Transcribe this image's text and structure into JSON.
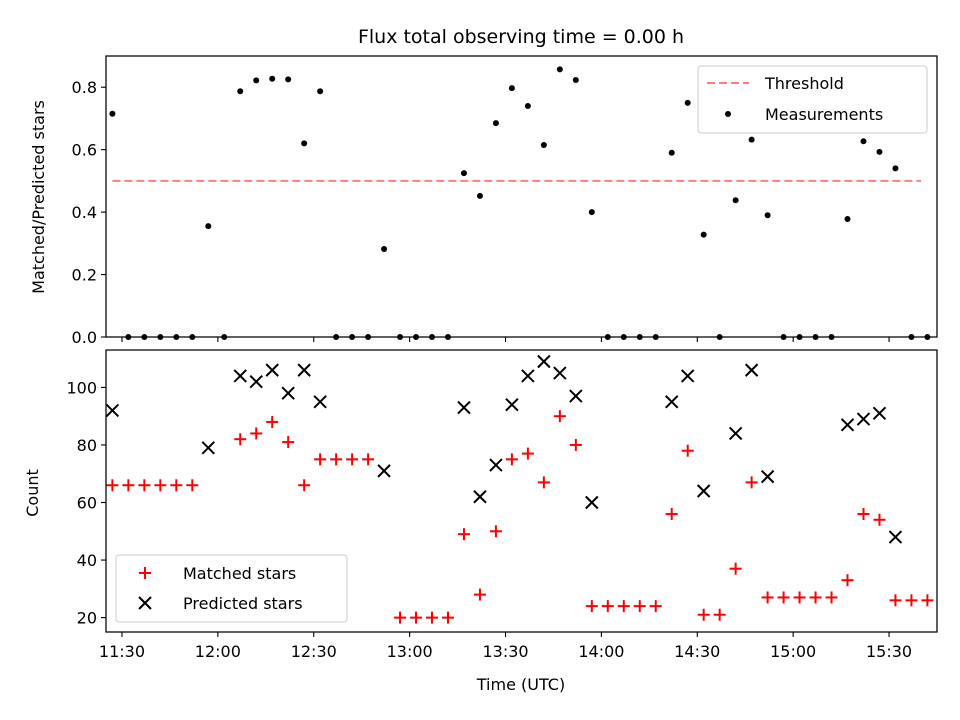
{
  "chart_data": {
    "title": "Flux total observing time = 0.00 h",
    "xlabel": "Time (UTC)",
    "x_ticks": [
      "11:30",
      "12:00",
      "12:30",
      "13:00",
      "13:30",
      "14:00",
      "14:30",
      "15:00",
      "15:30"
    ],
    "panels": [
      {
        "type": "scatter",
        "ylabel": "Matched/Predicted stars",
        "ylim": [
          0,
          0.9
        ],
        "y_ticks": [
          "0.0",
          "0.2",
          "0.4",
          "0.6",
          "0.8"
        ],
        "legend_position": "upper right",
        "threshold": {
          "name": "Threshold",
          "value": 0.5,
          "x_start": "11:27",
          "x_end": "15:40",
          "color": "#ff7f7f",
          "style": "dashed"
        },
        "series": [
          {
            "name": "Measurements",
            "color": "#000000",
            "marker": "dot",
            "points": [
              [
                "11:27",
                0.715
              ],
              [
                "11:32",
                0.0
              ],
              [
                "11:37",
                0.0
              ],
              [
                "11:42",
                0.0
              ],
              [
                "11:47",
                0.0
              ],
              [
                "11:52",
                0.0
              ],
              [
                "11:57",
                0.355
              ],
              [
                "12:02",
                0.0
              ],
              [
                "12:07",
                0.787
              ],
              [
                "12:12",
                0.822
              ],
              [
                "12:17",
                0.827
              ],
              [
                "12:22",
                0.825
              ],
              [
                "12:27",
                0.62
              ],
              [
                "12:32",
                0.787
              ],
              [
                "12:37",
                0.0
              ],
              [
                "12:42",
                0.0
              ],
              [
                "12:47",
                0.0
              ],
              [
                "12:52",
                0.282
              ],
              [
                "12:57",
                0.0
              ],
              [
                "13:02",
                0.0
              ],
              [
                "13:07",
                0.0
              ],
              [
                "13:12",
                0.0
              ],
              [
                "13:17",
                0.525
              ],
              [
                "13:22",
                0.452
              ],
              [
                "13:27",
                0.685
              ],
              [
                "13:32",
                0.797
              ],
              [
                "13:37",
                0.74
              ],
              [
                "13:42",
                0.615
              ],
              [
                "13:47",
                0.857
              ],
              [
                "13:52",
                0.823
              ],
              [
                "13:57",
                0.4
              ],
              [
                "14:02",
                0.0
              ],
              [
                "14:07",
                0.0
              ],
              [
                "14:12",
                0.0
              ],
              [
                "14:17",
                0.0
              ],
              [
                "14:22",
                0.59
              ],
              [
                "14:27",
                0.75
              ],
              [
                "14:32",
                0.328
              ],
              [
                "14:37",
                0.0
              ],
              [
                "14:42",
                0.438
              ],
              [
                "14:47",
                0.632
              ],
              [
                "14:52",
                0.39
              ],
              [
                "14:57",
                0.0
              ],
              [
                "15:02",
                0.0
              ],
              [
                "15:07",
                0.0
              ],
              [
                "15:12",
                0.0
              ],
              [
                "15:17",
                0.378
              ],
              [
                "15:22",
                0.627
              ],
              [
                "15:27",
                0.593
              ],
              [
                "15:32",
                0.54
              ],
              [
                "15:37",
                0.0
              ],
              [
                "15:42",
                0.0
              ]
            ]
          }
        ]
      },
      {
        "type": "scatter",
        "ylabel": "Count",
        "ylim": [
          15,
          113
        ],
        "y_ticks": [
          "20",
          "40",
          "60",
          "80",
          "100"
        ],
        "legend_position": "lower left",
        "series": [
          {
            "name": "Matched stars",
            "color": "#ff0000",
            "marker": "plus",
            "points": [
              [
                "11:27",
                66
              ],
              [
                "11:32",
                66
              ],
              [
                "11:37",
                66
              ],
              [
                "11:42",
                66
              ],
              [
                "11:47",
                66
              ],
              [
                "11:52",
                66
              ],
              [
                "12:07",
                82
              ],
              [
                "12:12",
                84
              ],
              [
                "12:17",
                88
              ],
              [
                "12:22",
                81
              ],
              [
                "12:27",
                66
              ],
              [
                "12:32",
                75
              ],
              [
                "12:37",
                75
              ],
              [
                "12:42",
                75
              ],
              [
                "12:47",
                75
              ],
              [
                "12:57",
                20
              ],
              [
                "13:02",
                20
              ],
              [
                "13:07",
                20
              ],
              [
                "13:12",
                20
              ],
              [
                "13:17",
                49
              ],
              [
                "13:22",
                28
              ],
              [
                "13:27",
                50
              ],
              [
                "13:32",
                75
              ],
              [
                "13:37",
                77
              ],
              [
                "13:42",
                67
              ],
              [
                "13:47",
                90
              ],
              [
                "13:52",
                80
              ],
              [
                "13:57",
                24
              ],
              [
                "14:02",
                24
              ],
              [
                "14:07",
                24
              ],
              [
                "14:12",
                24
              ],
              [
                "14:17",
                24
              ],
              [
                "14:22",
                56
              ],
              [
                "14:27",
                78
              ],
              [
                "14:32",
                21
              ],
              [
                "14:37",
                21
              ],
              [
                "14:42",
                37
              ],
              [
                "14:47",
                67
              ],
              [
                "14:52",
                27
              ],
              [
                "14:57",
                27
              ],
              [
                "15:02",
                27
              ],
              [
                "15:07",
                27
              ],
              [
                "15:12",
                27
              ],
              [
                "15:17",
                33
              ],
              [
                "15:22",
                56
              ],
              [
                "15:27",
                54
              ],
              [
                "15:32",
                26
              ],
              [
                "15:37",
                26
              ],
              [
                "15:42",
                26
              ]
            ]
          },
          {
            "name": "Predicted stars",
            "color": "#000000",
            "marker": "x",
            "points": [
              [
                "11:27",
                92
              ],
              [
                "11:57",
                79
              ],
              [
                "12:07",
                104
              ],
              [
                "12:12",
                102
              ],
              [
                "12:17",
                106
              ],
              [
                "12:22",
                98
              ],
              [
                "12:27",
                106
              ],
              [
                "12:32",
                95
              ],
              [
                "12:52",
                71
              ],
              [
                "13:17",
                93
              ],
              [
                "13:22",
                62
              ],
              [
                "13:27",
                73
              ],
              [
                "13:32",
                94
              ],
              [
                "13:37",
                104
              ],
              [
                "13:42",
                109
              ],
              [
                "13:47",
                105
              ],
              [
                "13:52",
                97
              ],
              [
                "13:57",
                60
              ],
              [
                "14:22",
                95
              ],
              [
                "14:27",
                104
              ],
              [
                "14:32",
                64
              ],
              [
                "14:42",
                84
              ],
              [
                "14:47",
                106
              ],
              [
                "14:52",
                69
              ],
              [
                "15:17",
                87
              ],
              [
                "15:22",
                89
              ],
              [
                "15:27",
                91
              ],
              [
                "15:32",
                48
              ]
            ]
          }
        ]
      }
    ]
  }
}
